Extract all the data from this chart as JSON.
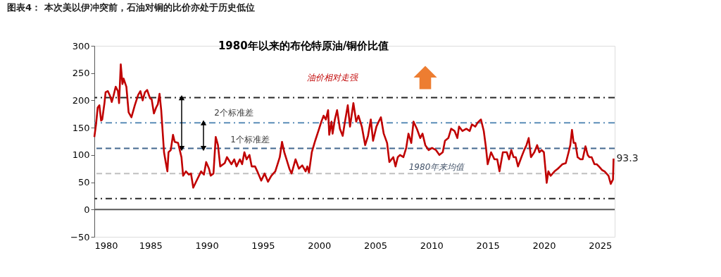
{
  "chart_data": {
    "type": "line",
    "title": "图表4： 本次美以伊冲突前，石油对铜的比价亦处于历史低位",
    "subtitle": "1980年以来的布伦特原油/铜价比值",
    "series": [
      {
        "color": "#c00000",
        "x": [
          1980.0,
          1980.15,
          1980.3,
          1980.45,
          1980.6,
          1980.7,
          1980.9,
          1981.0,
          1981.2,
          1981.4,
          1981.55,
          1981.7,
          1981.9,
          1982.1,
          1982.2,
          1982.35,
          1982.5,
          1982.6,
          1982.85,
          1983.05,
          1983.3,
          1983.6,
          1983.9,
          1984.1,
          1984.3,
          1984.5,
          1984.7,
          1984.95,
          1985.1,
          1985.3,
          1985.5,
          1985.65,
          1985.8,
          1985.95,
          1986.2,
          1986.35,
          1986.5,
          1986.6,
          1986.8,
          1987.0,
          1987.15,
          1987.45,
          1987.75,
          1987.9,
          1988.15,
          1988.4,
          1988.6,
          1988.8,
          1989.1,
          1989.5,
          1989.75,
          1989.95,
          1990.2,
          1990.35,
          1990.6,
          1990.8,
          1991.0,
          1991.2,
          1991.6,
          1991.8,
          1992.2,
          1992.45,
          1992.65,
          1992.95,
          1993.15,
          1993.35,
          1993.55,
          1993.8,
          1994.0,
          1994.3,
          1994.5,
          1994.85,
          1995.15,
          1995.45,
          1995.75,
          1996.1,
          1996.3,
          1996.5,
          1996.7,
          1996.9,
          1997.1,
          1997.35,
          1997.55,
          1997.9,
          1998.2,
          1998.5,
          1998.8,
          1998.95,
          1999.1,
          1999.35,
          1999.65,
          2000.0,
          2000.2,
          2000.4,
          2000.6,
          2000.8,
          2000.9,
          2001.1,
          2001.2,
          2001.4,
          2001.6,
          2001.85,
          2002.1,
          2002.3,
          2002.55,
          2002.75,
          2003.05,
          2003.3,
          2003.5,
          2003.8,
          2004.1,
          2004.35,
          2004.6,
          2004.8,
          2005.1,
          2005.3,
          2005.5,
          2005.75,
          2006.05,
          2006.25,
          2006.6,
          2006.8,
          2007.0,
          2007.2,
          2007.5,
          2007.75,
          2007.95,
          2008.2,
          2008.4,
          2008.7,
          2009.0,
          2009.2,
          2009.45,
          2009.75,
          2010.05,
          2010.4,
          2010.7,
          2011.0,
          2011.2,
          2011.5,
          2011.75,
          2012.05,
          2012.3,
          2012.45,
          2012.75,
          2013.1,
          2013.4,
          2013.6,
          2013.9,
          2014.1,
          2014.4,
          2014.65,
          2014.85,
          2015.0,
          2015.3,
          2015.6,
          2015.85,
          2016.05,
          2016.35,
          2016.7,
          2016.9,
          2017.1,
          2017.3,
          2017.5,
          2017.7,
          2018.0,
          2018.25,
          2018.45,
          2018.65,
          2018.85,
          2019.15,
          2019.4,
          2019.6,
          2019.8,
          2020.0,
          2020.25,
          2020.4,
          2020.6,
          2020.95,
          2021.25,
          2021.45,
          2021.65,
          2021.95,
          2022.2,
          2022.35,
          2022.5,
          2022.65,
          2022.8,
          2023.0,
          2023.25,
          2023.45,
          2023.7,
          2023.9,
          2024.05,
          2024.25,
          2024.5,
          2024.7,
          2024.9,
          2025.2,
          2025.4,
          2025.75,
          2025.95,
          2026.15,
          2026.2
        ],
        "values": [
          133,
          156,
          187,
          191,
          163,
          165,
          195,
          215,
          217,
          208,
          197,
          208,
          225,
          217,
          195,
          266,
          230,
          240,
          225,
          178,
          169,
          191,
          210,
          217,
          200,
          215,
          219,
          204,
          202,
          176,
          187,
          193,
          212,
          182,
          105,
          87,
          70,
          105,
          109,
          137,
          124,
          122,
          96,
          62,
          70,
          64,
          66,
          40,
          53,
          70,
          64,
          87,
          75,
          62,
          66,
          133,
          118,
          79,
          85,
          96,
          83,
          92,
          79,
          92,
          83,
          105,
          92,
          100,
          79,
          79,
          70,
          53,
          66,
          51,
          62,
          70,
          83,
          96,
          124,
          105,
          92,
          75,
          66,
          92,
          75,
          81,
          70,
          79,
          68,
          105,
          126,
          148,
          161,
          172,
          165,
          182,
          137,
          161,
          139,
          165,
          182,
          148,
          135,
          161,
          191,
          152,
          195,
          161,
          172,
          152,
          118,
          135,
          165,
          126,
          152,
          161,
          169,
          139,
          122,
          87,
          96,
          79,
          96,
          100,
          96,
          113,
          139,
          122,
          161,
          148,
          131,
          139,
          118,
          109,
          113,
          109,
          100,
          105,
          126,
          131,
          148,
          144,
          131,
          152,
          144,
          148,
          144,
          156,
          152,
          159,
          165,
          144,
          113,
          83,
          105,
          92,
          92,
          70,
          105,
          105,
          92,
          109,
          96,
          96,
          79,
          96,
          109,
          118,
          131,
          96,
          105,
          118,
          105,
          109,
          105,
          49,
          70,
          62,
          70,
          75,
          79,
          83,
          85,
          105,
          118,
          146,
          122,
          122,
          96,
          92,
          92,
          116,
          100,
          96,
          96,
          83,
          83,
          79,
          72,
          70,
          62,
          47,
          55,
          93.3
        ]
      }
    ],
    "xlim": [
      1980,
      2026.3
    ],
    "xticks": [
      1980,
      1985,
      1990,
      1995,
      2000,
      2005,
      2010,
      2015,
      2020,
      2025
    ],
    "ylim": [
      -50,
      300
    ],
    "yticks": [
      -50,
      0,
      50,
      100,
      150,
      200,
      250,
      300
    ],
    "grid": false,
    "marker": "none",
    "line_style": "solid",
    "ref_lines": [
      {
        "axis": "y",
        "value": 0,
        "color": "#595959",
        "line_style": "solid"
      },
      {
        "axis": "y",
        "value": 205,
        "color": "#262626",
        "line_style": "dashdot"
      },
      {
        "axis": "y",
        "value": 159,
        "color": "#5b8db8",
        "line_style": "dashdot"
      },
      {
        "axis": "y",
        "value": 112,
        "color": "#44698f",
        "line_style": "dashed"
      },
      {
        "axis": "y",
        "value": 66,
        "color": "#c0c0c0",
        "line_style": "dashed"
      },
      {
        "axis": "y",
        "value": 20,
        "color": "#262626",
        "line_style": "dashdot"
      }
    ],
    "annotations": [
      "油价相对走强",
      "2个标准差",
      "1个标准差",
      "1980年来均值",
      {
        "text": "93.3",
        "x": 2026.2,
        "y": 93.3
      }
    ]
  }
}
